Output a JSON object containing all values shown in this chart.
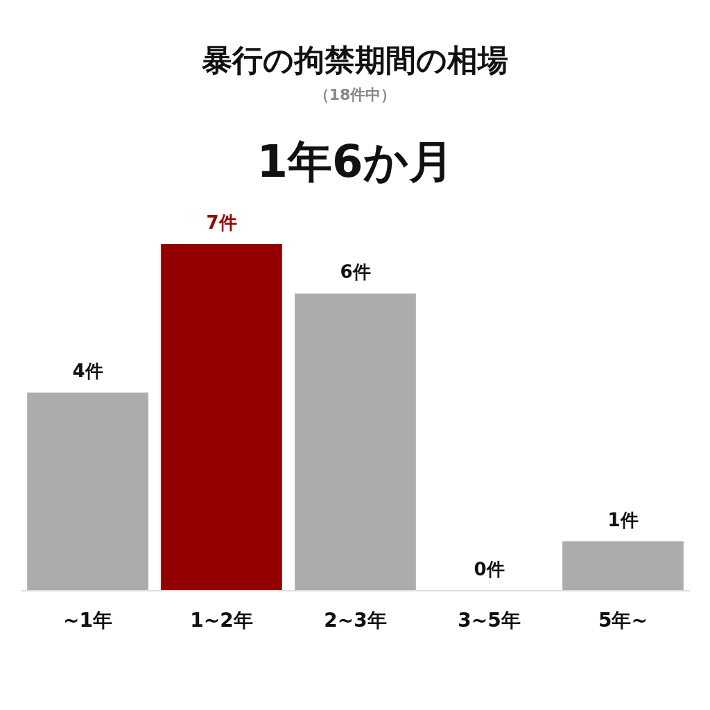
{
  "chart_data": {
    "type": "bar",
    "title": "暴行の拘禁期間の相場",
    "subtitle": "（18件中）",
    "annotations": [
      "1年6か月"
    ],
    "categories": [
      "~1年",
      "1~2年",
      "2~3年",
      "3~5年",
      "5年~"
    ],
    "values": [
      4,
      7,
      6,
      0,
      1
    ],
    "value_labels": [
      "4件",
      "7件",
      "6件",
      "0件",
      "1件"
    ],
    "colors": [
      "#acacac",
      "#940000",
      "#acacac",
      "#acacac",
      "#acacac"
    ]
  }
}
